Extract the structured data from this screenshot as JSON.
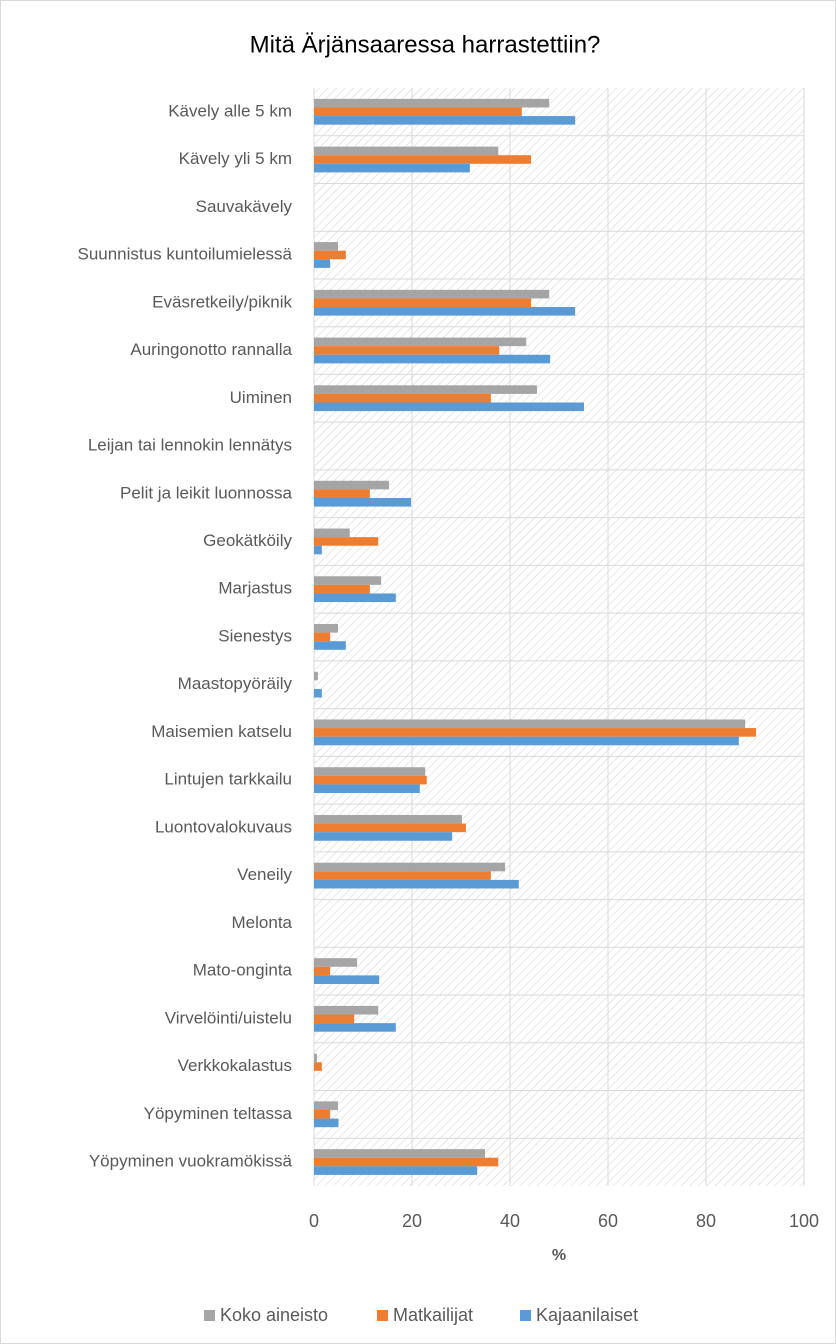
{
  "chart_data": {
    "type": "hbar",
    "title": "Mitä Ärjänsaaressa harrastettiin?",
    "x_label": "%",
    "categories": [
      "Kävely alle 5 km",
      "Kävely yli 5 km",
      "Sauvakävely",
      "Suunnistus kuntoilumielessä",
      "Eväsretkeily/piknik",
      "Auringonotto rannalla",
      "Uiminen",
      "Leijan tai lennokin lennätys",
      "Pelit ja leikit luonnossa",
      "Geokätköily",
      "Marjastus",
      "Sienestys",
      "Maastopyöräily",
      "Maisemien katselu",
      "Lintujen tarkkailu",
      "Luontovalokuvaus",
      "Veneily",
      "Melonta",
      "Mato-onginta",
      "Virvelöinti/uistelu",
      "Verkkokalastus",
      "Yöpyminen teltassa",
      "Yöpyminen vuokramökissä"
    ],
    "series": [
      {
        "name": "Koko aineisto",
        "color": "#a5a5a5",
        "values": [
          48,
          37.6,
          0,
          4.9,
          48,
          43.3,
          45.5,
          0,
          15.3,
          7.3,
          13.7,
          4.9,
          0.8,
          88,
          22.7,
          30.2,
          39,
          0,
          8.8,
          13.1,
          0.6,
          4.9,
          34.9
        ]
      },
      {
        "name": "Matkailijat",
        "color": "#ed7d31",
        "values": [
          42.4,
          44.3,
          0,
          6.5,
          44.3,
          37.8,
          36.1,
          0,
          11.4,
          13.1,
          11.4,
          3.3,
          0,
          90.2,
          23,
          31,
          36.1,
          0,
          3.3,
          8.2,
          1.6,
          3.3,
          37.6
        ]
      },
      {
        "name": "Kajaanilaiset",
        "color": "#5b9bd5",
        "values": [
          53.3,
          31.8,
          0,
          3.3,
          53.3,
          48.2,
          55.1,
          0,
          19.8,
          1.6,
          16.7,
          6.5,
          1.6,
          86.7,
          21.6,
          28.2,
          41.8,
          0,
          13.3,
          16.7,
          0,
          5,
          33.3
        ]
      }
    ],
    "xlim": [
      0,
      100
    ],
    "xticks": [
      0,
      20,
      40,
      60,
      80,
      100
    ],
    "grid": true,
    "legend": "bottom"
  }
}
